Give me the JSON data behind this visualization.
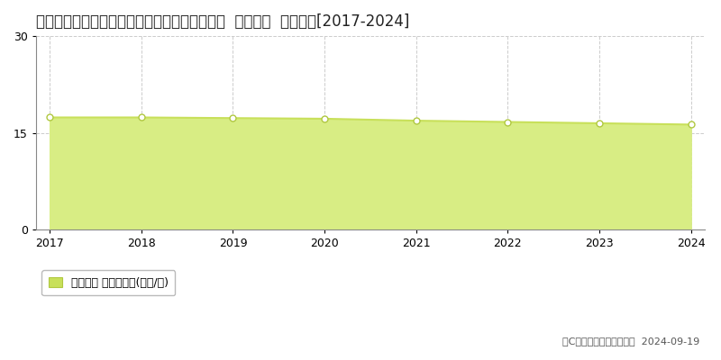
{
  "title": "静岡県静岡市清水区草ヶ谷字足高２９９番７外  基準地価  地価推移[2017-2024]",
  "years": [
    2017,
    2018,
    2019,
    2020,
    2021,
    2022,
    2023,
    2024
  ],
  "values": [
    17.4,
    17.4,
    17.3,
    17.2,
    16.9,
    16.7,
    16.5,
    16.3
  ],
  "ylim": [
    0,
    30
  ],
  "yticks": [
    0,
    15,
    30
  ],
  "line_color": "#c8e05a",
  "fill_color": "#d8ed84",
  "marker_face_color": "#ffffff",
  "marker_edge_color": "#b0c840",
  "bg_color": "#ffffff",
  "grid_h_color": "#cccccc",
  "grid_v_color": "#cccccc",
  "legend_label": "基準地価 平均嵪単価(万円/嵪)",
  "legend_color": "#c8e05a",
  "legend_edge_color": "#b0c840",
  "copyright_text": "（C）土地価格ドットコム  2024-09-19",
  "title_fontsize": 12,
  "axis_fontsize": 9,
  "legend_fontsize": 9,
  "copyright_fontsize": 8
}
